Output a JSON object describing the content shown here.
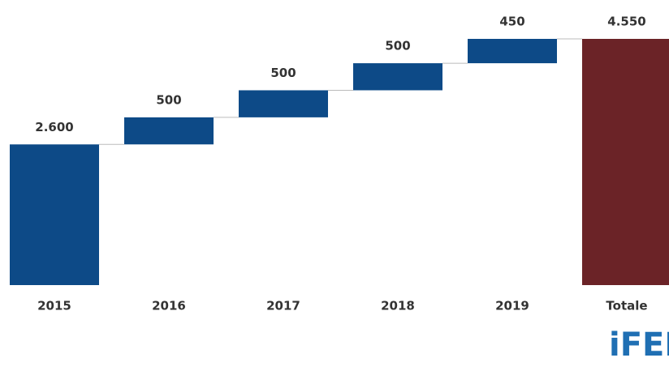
{
  "chart_data": {
    "type": "waterfall",
    "categories": [
      "2015",
      "2016",
      "2017",
      "2018",
      "2019",
      "Totale"
    ],
    "values": [
      2600,
      500,
      500,
      500,
      450,
      4550
    ],
    "value_labels": [
      "2.600",
      "500",
      "500",
      "500",
      "450",
      "4.550"
    ],
    "color": "#0d4a87",
    "total_color": "#6b2327"
  },
  "logo": "iFEL"
}
